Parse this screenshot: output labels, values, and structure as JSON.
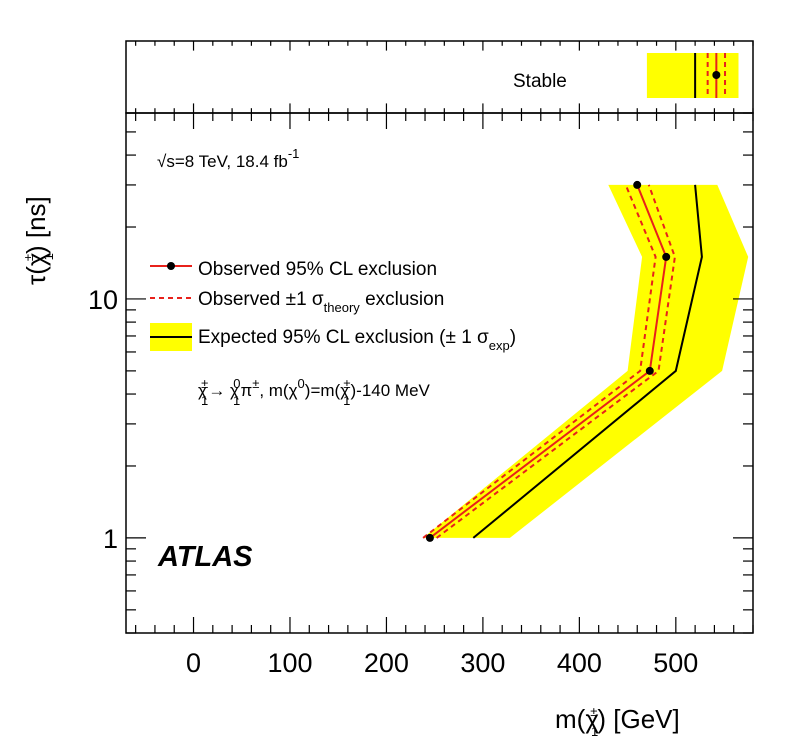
{
  "chart_data": {
    "type": "line",
    "x_axis": {
      "label": "m(χ̃₁±) [GeV]",
      "label_main": "m(",
      "label_symbol": "χ",
      "label_sub": "1",
      "label_sup": "±",
      "label_tail": ") [GeV]",
      "range": [
        -70,
        580
      ],
      "ticks": [
        0,
        100,
        200,
        300,
        400,
        500
      ],
      "tick_labels": [
        "0",
        "100",
        "200",
        "300",
        "400",
        "500"
      ]
    },
    "y_axis": {
      "label": "τ(χ̃₁±) [ns]",
      "label_tau": "τ(",
      "label_symbol": "χ",
      "label_sub": "1",
      "label_sup": "±",
      "label_tail": ") [ns]",
      "scale": "log",
      "range": [
        0.4,
        60
      ],
      "ticks": [
        1,
        10
      ],
      "tick_labels": [
        "1",
        "10"
      ]
    },
    "stable_panel": {
      "label": "Stable",
      "observed": 542,
      "observed_theory_band": [
        533,
        551
      ],
      "expected": 520,
      "expected_band": [
        470,
        565
      ]
    },
    "series": [
      {
        "name": "Observed 95% CL exclusion",
        "style": "red-solid-with-markers",
        "x": [
          245,
          473,
          490,
          460
        ],
        "y": [
          1,
          5,
          15,
          30
        ]
      },
      {
        "name": "Observed ±1σ theory (low)",
        "style": "red-dashed",
        "x": [
          238,
          463,
          479,
          448
        ],
        "y": [
          1,
          5,
          15,
          30
        ]
      },
      {
        "name": "Observed ±1σ theory (high)",
        "style": "red-dashed",
        "x": [
          252,
          482,
          499,
          472
        ],
        "y": [
          1,
          5,
          15,
          30
        ]
      },
      {
        "name": "Expected 95% CL exclusion",
        "style": "black-solid",
        "x": [
          290,
          500,
          527,
          520
        ],
        "y": [
          1,
          5,
          15,
          30
        ]
      }
    ],
    "expected_band": {
      "name": "±1σ exp",
      "color": "#ffff00",
      "lower_x": [
        238,
        450,
        465,
        430
      ],
      "upper_x": [
        328,
        548,
        575,
        543
      ],
      "y": [
        1,
        5,
        15,
        30
      ]
    },
    "legend": [
      {
        "main": "Observed 95% CL exclusion"
      },
      {
        "main": "Observed ±1 σ",
        "sub": "theory",
        "tail": " exclusion"
      },
      {
        "main": "Expected 95% CL exclusion (± 1 σ",
        "sub": "exp",
        "tail": ")"
      }
    ],
    "annotations": {
      "energy_root": "√",
      "energy": "s=8 TeV, 18.4 fb",
      "energy_sup": "-1",
      "decay_part1": "χ",
      "decay_sub1": "1",
      "decay_sup1": "±",
      "decay_arrow": "→ ",
      "decay_part2": "χ",
      "decay_sub2": "1",
      "decay_sup2": "0",
      "decay_part3": "π",
      "decay_sup3": "±",
      "decay_part4": ", m(",
      "decay_part5": "χ",
      "decay_sup5": "0",
      "decay_part6": ")=m(",
      "decay_part7": "χ",
      "decay_sub7": "1",
      "decay_sup7": "±",
      "decay_part8": ")-140 MeV",
      "experiment": "ATLAS"
    },
    "colors": {
      "band": "#ffff00",
      "observed": "#e8211b",
      "expected": "#000000"
    }
  }
}
